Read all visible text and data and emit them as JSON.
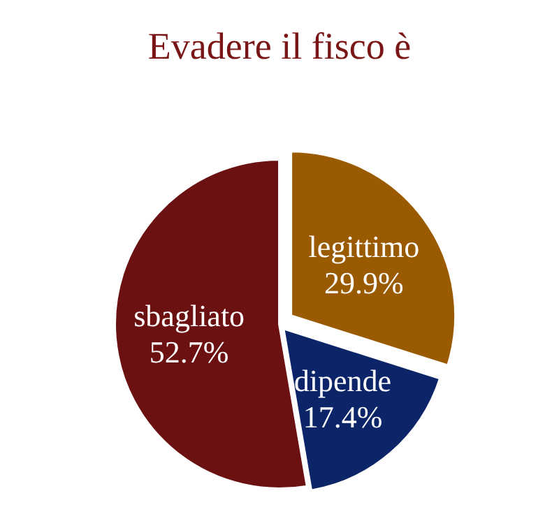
{
  "chart_data": {
    "type": "pie",
    "title": "Evadere il fisco è",
    "categories": [
      "legittimo",
      "dipende",
      "sbagliato"
    ],
    "values": [
      29.9,
      17.4,
      52.7
    ],
    "colors": [
      "#9a5a00",
      "#0c2468",
      "#6b1111"
    ],
    "value_labels": [
      "29.9%",
      "17.4%",
      "52.7%"
    ]
  }
}
